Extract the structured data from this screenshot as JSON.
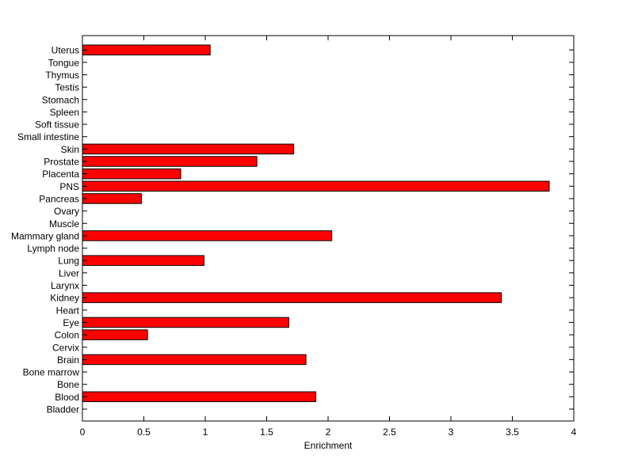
{
  "chart_data": {
    "type": "bar",
    "orientation": "horizontal",
    "title": "",
    "xlabel": "Enrichment",
    "ylabel": "",
    "xlim": [
      0,
      4
    ],
    "xticks": [
      "0",
      "0.5",
      "1",
      "1.5",
      "2",
      "2.5",
      "3",
      "3.5",
      "4"
    ],
    "grid": false,
    "bar_color": "#ff0000",
    "categories": [
      "Bladder",
      "Blood",
      "Bone",
      "Bone marrow",
      "Brain",
      "Cervix",
      "Colon",
      "Eye",
      "Heart",
      "Kidney",
      "Larynx",
      "Liver",
      "Lung",
      "Lymph node",
      "Mammary gland",
      "Muscle",
      "Ovary",
      "Pancreas",
      "PNS",
      "Placenta",
      "Prostate",
      "Skin",
      "Small intestine",
      "Soft tissue",
      "Spleen",
      "Stomach",
      "Testis",
      "Thymus",
      "Tongue",
      "Uterus"
    ],
    "values": [
      0,
      1.9,
      0,
      0,
      1.82,
      0,
      0.53,
      1.68,
      0,
      3.41,
      0,
      0,
      0.99,
      0,
      2.03,
      0,
      0,
      0.48,
      3.8,
      0.8,
      1.42,
      1.72,
      0,
      0,
      0,
      0,
      0,
      0,
      0,
      1.04
    ]
  }
}
